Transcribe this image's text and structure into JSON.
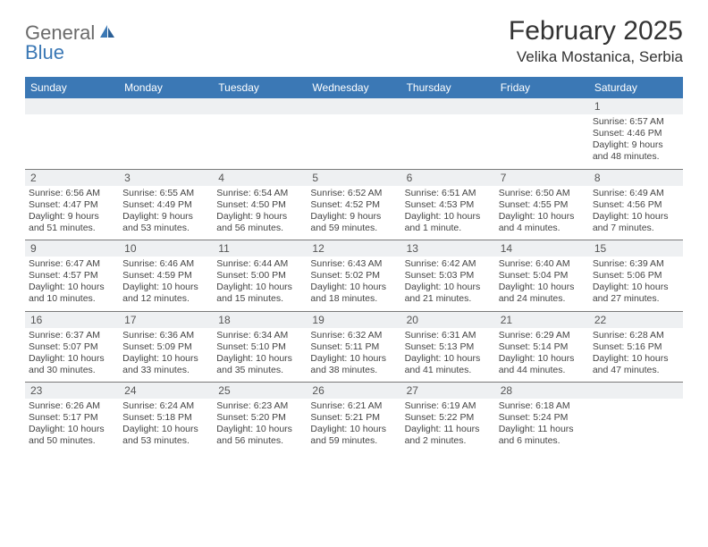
{
  "brand": {
    "part1": "General",
    "part2": "Blue"
  },
  "title": "February 2025",
  "location": "Velika Mostanica, Serbia",
  "colors": {
    "header_bg": "#3b78b5",
    "header_text": "#ffffff",
    "daynum_bg": "#eef0f2",
    "text": "#333333",
    "logo_gray": "#6a6a6a",
    "logo_blue": "#3b78b5",
    "rule": "#7a7a7a"
  },
  "weekdays": [
    "Sunday",
    "Monday",
    "Tuesday",
    "Wednesday",
    "Thursday",
    "Friday",
    "Saturday"
  ],
  "weeks": [
    [
      null,
      null,
      null,
      null,
      null,
      null,
      {
        "n": "1",
        "sr": "Sunrise: 6:57 AM",
        "ss": "Sunset: 4:46 PM",
        "d1": "Daylight: 9 hours",
        "d2": "and 48 minutes."
      }
    ],
    [
      {
        "n": "2",
        "sr": "Sunrise: 6:56 AM",
        "ss": "Sunset: 4:47 PM",
        "d1": "Daylight: 9 hours",
        "d2": "and 51 minutes."
      },
      {
        "n": "3",
        "sr": "Sunrise: 6:55 AM",
        "ss": "Sunset: 4:49 PM",
        "d1": "Daylight: 9 hours",
        "d2": "and 53 minutes."
      },
      {
        "n": "4",
        "sr": "Sunrise: 6:54 AM",
        "ss": "Sunset: 4:50 PM",
        "d1": "Daylight: 9 hours",
        "d2": "and 56 minutes."
      },
      {
        "n": "5",
        "sr": "Sunrise: 6:52 AM",
        "ss": "Sunset: 4:52 PM",
        "d1": "Daylight: 9 hours",
        "d2": "and 59 minutes."
      },
      {
        "n": "6",
        "sr": "Sunrise: 6:51 AM",
        "ss": "Sunset: 4:53 PM",
        "d1": "Daylight: 10 hours",
        "d2": "and 1 minute."
      },
      {
        "n": "7",
        "sr": "Sunrise: 6:50 AM",
        "ss": "Sunset: 4:55 PM",
        "d1": "Daylight: 10 hours",
        "d2": "and 4 minutes."
      },
      {
        "n": "8",
        "sr": "Sunrise: 6:49 AM",
        "ss": "Sunset: 4:56 PM",
        "d1": "Daylight: 10 hours",
        "d2": "and 7 minutes."
      }
    ],
    [
      {
        "n": "9",
        "sr": "Sunrise: 6:47 AM",
        "ss": "Sunset: 4:57 PM",
        "d1": "Daylight: 10 hours",
        "d2": "and 10 minutes."
      },
      {
        "n": "10",
        "sr": "Sunrise: 6:46 AM",
        "ss": "Sunset: 4:59 PM",
        "d1": "Daylight: 10 hours",
        "d2": "and 12 minutes."
      },
      {
        "n": "11",
        "sr": "Sunrise: 6:44 AM",
        "ss": "Sunset: 5:00 PM",
        "d1": "Daylight: 10 hours",
        "d2": "and 15 minutes."
      },
      {
        "n": "12",
        "sr": "Sunrise: 6:43 AM",
        "ss": "Sunset: 5:02 PM",
        "d1": "Daylight: 10 hours",
        "d2": "and 18 minutes."
      },
      {
        "n": "13",
        "sr": "Sunrise: 6:42 AM",
        "ss": "Sunset: 5:03 PM",
        "d1": "Daylight: 10 hours",
        "d2": "and 21 minutes."
      },
      {
        "n": "14",
        "sr": "Sunrise: 6:40 AM",
        "ss": "Sunset: 5:04 PM",
        "d1": "Daylight: 10 hours",
        "d2": "and 24 minutes."
      },
      {
        "n": "15",
        "sr": "Sunrise: 6:39 AM",
        "ss": "Sunset: 5:06 PM",
        "d1": "Daylight: 10 hours",
        "d2": "and 27 minutes."
      }
    ],
    [
      {
        "n": "16",
        "sr": "Sunrise: 6:37 AM",
        "ss": "Sunset: 5:07 PM",
        "d1": "Daylight: 10 hours",
        "d2": "and 30 minutes."
      },
      {
        "n": "17",
        "sr": "Sunrise: 6:36 AM",
        "ss": "Sunset: 5:09 PM",
        "d1": "Daylight: 10 hours",
        "d2": "and 33 minutes."
      },
      {
        "n": "18",
        "sr": "Sunrise: 6:34 AM",
        "ss": "Sunset: 5:10 PM",
        "d1": "Daylight: 10 hours",
        "d2": "and 35 minutes."
      },
      {
        "n": "19",
        "sr": "Sunrise: 6:32 AM",
        "ss": "Sunset: 5:11 PM",
        "d1": "Daylight: 10 hours",
        "d2": "and 38 minutes."
      },
      {
        "n": "20",
        "sr": "Sunrise: 6:31 AM",
        "ss": "Sunset: 5:13 PM",
        "d1": "Daylight: 10 hours",
        "d2": "and 41 minutes."
      },
      {
        "n": "21",
        "sr": "Sunrise: 6:29 AM",
        "ss": "Sunset: 5:14 PM",
        "d1": "Daylight: 10 hours",
        "d2": "and 44 minutes."
      },
      {
        "n": "22",
        "sr": "Sunrise: 6:28 AM",
        "ss": "Sunset: 5:16 PM",
        "d1": "Daylight: 10 hours",
        "d2": "and 47 minutes."
      }
    ],
    [
      {
        "n": "23",
        "sr": "Sunrise: 6:26 AM",
        "ss": "Sunset: 5:17 PM",
        "d1": "Daylight: 10 hours",
        "d2": "and 50 minutes."
      },
      {
        "n": "24",
        "sr": "Sunrise: 6:24 AM",
        "ss": "Sunset: 5:18 PM",
        "d1": "Daylight: 10 hours",
        "d2": "and 53 minutes."
      },
      {
        "n": "25",
        "sr": "Sunrise: 6:23 AM",
        "ss": "Sunset: 5:20 PM",
        "d1": "Daylight: 10 hours",
        "d2": "and 56 minutes."
      },
      {
        "n": "26",
        "sr": "Sunrise: 6:21 AM",
        "ss": "Sunset: 5:21 PM",
        "d1": "Daylight: 10 hours",
        "d2": "and 59 minutes."
      },
      {
        "n": "27",
        "sr": "Sunrise: 6:19 AM",
        "ss": "Sunset: 5:22 PM",
        "d1": "Daylight: 11 hours",
        "d2": "and 2 minutes."
      },
      {
        "n": "28",
        "sr": "Sunrise: 6:18 AM",
        "ss": "Sunset: 5:24 PM",
        "d1": "Daylight: 11 hours",
        "d2": "and 6 minutes."
      },
      null
    ]
  ]
}
